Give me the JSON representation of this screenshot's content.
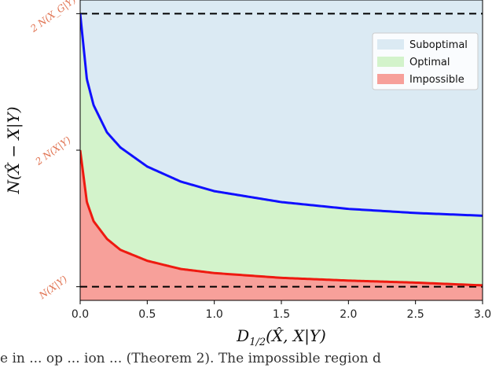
{
  "chart_data": {
    "type": "area",
    "xlabel": "D_{1/2}(X̂, X|Y)",
    "ylabel": "N(X̂ − X|Y)",
    "xlim": [
      0,
      3.0
    ],
    "x_ticks": [
      "0.0",
      "0.5",
      "1.0",
      "1.5",
      "2.0",
      "2.5",
      "3.0"
    ],
    "y_tick_labels": [
      {
        "label": "N(X|Y)",
        "value": 1.0
      },
      {
        "label": "2 N(X|Y)",
        "value": 2.0
      },
      {
        "label": "2 N(X_G|Y)",
        "value": 3.0
      }
    ],
    "y_tick_label_color": "#e0714f",
    "ylim": [
      0.9,
      3.1
    ],
    "legend_position": "upper right",
    "series": [
      {
        "name": "Suboptimal",
        "color": "#dbeaf3"
      },
      {
        "name": "Optimal",
        "color": "#d3f3cb"
      },
      {
        "name": "Impossible",
        "color": "#f7a09a"
      }
    ],
    "curves": [
      {
        "role": "upper",
        "color": "#1010ff",
        "x": [
          0.0,
          0.05,
          0.1,
          0.2,
          0.3,
          0.5,
          0.75,
          1.0,
          1.5,
          2.0,
          2.5,
          3.0
        ],
        "y": [
          3.0,
          2.52,
          2.33,
          2.13,
          2.02,
          1.88,
          1.77,
          1.7,
          1.62,
          1.57,
          1.54,
          1.52
        ]
      },
      {
        "role": "lower",
        "color": "#ee1a10",
        "x": [
          0.0,
          0.05,
          0.1,
          0.2,
          0.3,
          0.5,
          0.75,
          1.0,
          1.5,
          2.0,
          2.5,
          3.0
        ],
        "y": [
          2.0,
          1.62,
          1.48,
          1.35,
          1.27,
          1.19,
          1.13,
          1.1,
          1.065,
          1.045,
          1.03,
          1.01
        ]
      }
    ],
    "reference_lines": [
      {
        "y": 1.0,
        "style": "dashed",
        "color": "#000000"
      },
      {
        "y": 3.0,
        "style": "dashed",
        "color": "#000000"
      }
    ]
  },
  "caption_text": "e in ... op ... ion ... (Theorem 2). The impossible region d"
}
